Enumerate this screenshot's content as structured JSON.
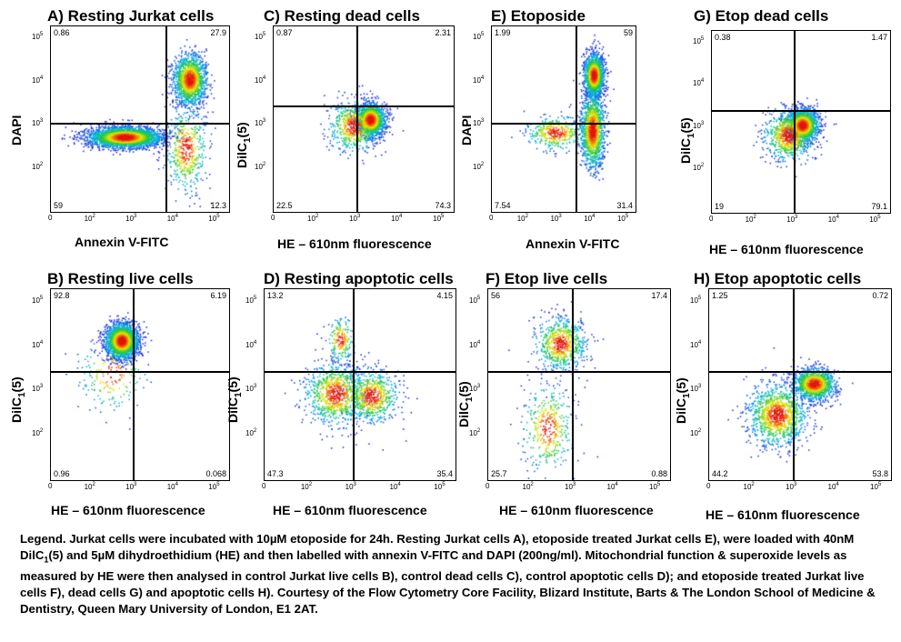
{
  "chart_data": [
    {
      "id": "A",
      "type": "scatter",
      "title": "A) Resting Jurkat cells",
      "xlabel": "Annexin V-FITC",
      "ylabel": "DAPI",
      "x_scale": "log",
      "y_scale": "log",
      "xlim": [
        10,
        200000
      ],
      "ylim": [
        10,
        200000
      ],
      "x_ticks": [
        "0",
        "10^2",
        "10^3",
        "10^4",
        "10^5"
      ],
      "y_ticks": [
        "10^2",
        "10^3",
        "10^4",
        "10^5"
      ],
      "gate": {
        "x": 6000,
        "y": 1100
      },
      "quadrants": {
        "top_left": "0.86",
        "top_right": "27.9",
        "bottom_left": "59",
        "bottom_right": "12.3"
      },
      "populations": [
        {
          "x": 600,
          "y": 550,
          "sx": 0.45,
          "sy": 0.12,
          "n": 3000
        },
        {
          "x": 22000,
          "y": 12000,
          "sx": 0.2,
          "sy": 0.3,
          "n": 1400
        },
        {
          "x": 18000,
          "y": 300,
          "sx": 0.25,
          "sy": 0.5,
          "n": 500
        }
      ]
    },
    {
      "id": "C",
      "type": "scatter",
      "title": "C) Resting dead cells",
      "xlabel": "HE – 610nm fluorescence",
      "ylabel": "DilC1(5)",
      "x_scale": "log",
      "y_scale": "log",
      "xlim": [
        10,
        200000
      ],
      "ylim": [
        10,
        200000
      ],
      "x_ticks": [
        "0",
        "10^2",
        "10^3",
        "10^4",
        "10^5"
      ],
      "y_ticks": [
        "10^2",
        "10^3",
        "10^4",
        "10^5"
      ],
      "gate": {
        "x": 1000,
        "y": 2800
      },
      "quadrants": {
        "top_left": "0.87",
        "top_right": "2.31",
        "bottom_left": "22.5",
        "bottom_right": "74.3"
      },
      "populations": [
        {
          "x": 2000,
          "y": 1400,
          "sx": 0.18,
          "sy": 0.2,
          "n": 1500
        },
        {
          "x": 800,
          "y": 1000,
          "sx": 0.3,
          "sy": 0.3,
          "n": 600
        }
      ]
    },
    {
      "id": "E",
      "type": "scatter",
      "title": "E) Etoposide",
      "xlabel": "Annexin V-FITC",
      "ylabel": "DAPI",
      "x_scale": "log",
      "y_scale": "log",
      "xlim": [
        10,
        200000
      ],
      "ylim": [
        10,
        200000
      ],
      "x_ticks": [
        "0",
        "10^2",
        "10^3",
        "10^4",
        "10^5"
      ],
      "y_ticks": [
        "10^2",
        "10^3",
        "10^4",
        "10^5"
      ],
      "gate": {
        "x": 3500,
        "y": 1100
      },
      "quadrants": {
        "top_left": "1.99",
        "top_right": "59",
        "bottom_left": "7.54",
        "bottom_right": "31.4"
      },
      "populations": [
        {
          "x": 11000,
          "y": 15000,
          "sx": 0.15,
          "sy": 0.25,
          "n": 1500
        },
        {
          "x": 10000,
          "y": 800,
          "sx": 0.18,
          "sy": 0.45,
          "n": 1400
        },
        {
          "x": 800,
          "y": 700,
          "sx": 0.45,
          "sy": 0.2,
          "n": 400
        }
      ]
    },
    {
      "id": "G",
      "type": "scatter",
      "title": "G) Etop dead cells",
      "xlabel": "HE – 610nm fluorescence",
      "ylabel": "DilC1(5)",
      "x_scale": "log",
      "y_scale": "log",
      "xlim": [
        10,
        200000
      ],
      "ylim": [
        10,
        200000
      ],
      "x_ticks": [
        "0",
        "10^2",
        "10^3",
        "10^4",
        "10^5"
      ],
      "y_ticks": [
        "10^2",
        "10^3",
        "10^4",
        "10^5"
      ],
      "gate": {
        "x": 1000,
        "y": 2600
      },
      "quadrants": {
        "top_left": "0.38",
        "top_right": "1.47",
        "bottom_left": "19",
        "bottom_right": "79.1"
      },
      "populations": [
        {
          "x": 1500,
          "y": 1200,
          "sx": 0.2,
          "sy": 0.2,
          "n": 1600
        },
        {
          "x": 700,
          "y": 700,
          "sx": 0.3,
          "sy": 0.3,
          "n": 800
        }
      ]
    },
    {
      "id": "B",
      "type": "scatter",
      "title": "B) Resting live cells",
      "xlabel": "HE – 610nm fluorescence",
      "ylabel": "DilC1(5)",
      "x_scale": "log",
      "y_scale": "log",
      "xlim": [
        10,
        200000
      ],
      "ylim": [
        10,
        200000
      ],
      "x_ticks": [
        "0",
        "10^2",
        "10^3",
        "10^4",
        "10^5"
      ],
      "y_ticks": [
        "10^2",
        "10^3",
        "10^4",
        "10^5"
      ],
      "gate": {
        "x": 1000,
        "y": 2800
      },
      "quadrants": {
        "top_left": "92.8",
        "top_right": "6.19",
        "bottom_left": "0.96",
        "bottom_right": "0.068"
      },
      "populations": [
        {
          "x": 500,
          "y": 14000,
          "sx": 0.2,
          "sy": 0.2,
          "n": 2200
        },
        {
          "x": 300,
          "y": 2500,
          "sx": 0.4,
          "sy": 0.4,
          "n": 200
        }
      ]
    },
    {
      "id": "D",
      "type": "scatter",
      "title": "D) Resting apoptotic cells",
      "xlabel": "HE – 610nm fluorescence",
      "ylabel": "DilC1(5)",
      "x_scale": "log",
      "y_scale": "log",
      "xlim": [
        10,
        200000
      ],
      "ylim": [
        10,
        200000
      ],
      "x_ticks": [
        "0",
        "10^2",
        "10^3",
        "10^4",
        "10^5"
      ],
      "y_ticks": [
        "10^2",
        "10^3",
        "10^4",
        "10^5"
      ],
      "gate": {
        "x": 1000,
        "y": 2800
      },
      "quadrants": {
        "top_left": "13.2",
        "top_right": "4.15",
        "bottom_left": "47.3",
        "bottom_right": "35.4"
      },
      "populations": [
        {
          "x": 400,
          "y": 900,
          "sx": 0.35,
          "sy": 0.35,
          "n": 900
        },
        {
          "x": 2500,
          "y": 800,
          "sx": 0.3,
          "sy": 0.3,
          "n": 700
        },
        {
          "x": 500,
          "y": 15000,
          "sx": 0.15,
          "sy": 0.25,
          "n": 200
        }
      ]
    },
    {
      "id": "F",
      "type": "scatter",
      "title": "F) Etop live cells",
      "xlabel": "HE – 610nm fluorescence",
      "ylabel": "DilC1(5)",
      "x_scale": "log",
      "y_scale": "log",
      "xlim": [
        10,
        200000
      ],
      "ylim": [
        10,
        200000
      ],
      "x_ticks": [
        "0",
        "10^2",
        "10^3",
        "10^4",
        "10^5"
      ],
      "y_ticks": [
        "10^2",
        "10^3",
        "10^4",
        "10^5"
      ],
      "gate": {
        "x": 1000,
        "y": 2800
      },
      "quadrants": {
        "top_left": "56",
        "top_right": "17.4",
        "bottom_left": "25.7",
        "bottom_right": "0.88"
      },
      "populations": [
        {
          "x": 500,
          "y": 12000,
          "sx": 0.3,
          "sy": 0.3,
          "n": 700
        },
        {
          "x": 250,
          "y": 150,
          "sx": 0.3,
          "sy": 0.5,
          "n": 400
        }
      ]
    },
    {
      "id": "H",
      "type": "scatter",
      "title": "H) Etop apoptotic cells",
      "xlabel": "HE – 610nm fluorescence",
      "ylabel": "DilC1(5)",
      "x_scale": "log",
      "y_scale": "log",
      "xlim": [
        10,
        200000
      ],
      "ylim": [
        10,
        200000
      ],
      "x_ticks": [
        "0",
        "10^2",
        "10^3",
        "10^4",
        "10^5"
      ],
      "y_ticks": [
        "10^2",
        "10^3",
        "10^4",
        "10^5"
      ],
      "gate": {
        "x": 1000,
        "y": 2800
      },
      "quadrants": {
        "top_left": "1.25",
        "top_right": "0.72",
        "bottom_left": "44.2",
        "bottom_right": "53.8"
      },
      "populations": [
        {
          "x": 3000,
          "y": 1500,
          "sx": 0.25,
          "sy": 0.18,
          "n": 1200
        },
        {
          "x": 400,
          "y": 300,
          "sx": 0.35,
          "sy": 0.35,
          "n": 1200
        }
      ]
    }
  ],
  "legend_text": {
    "p1": "Legend.  Jurkat cells were incubated with 10µM  etoposide for 24h. Resting Jurkat cells A), etoposide treated Jurkat cells E), were loaded with 40nM ",
    "p1_dil": "DilC",
    "p1_sub": "1",
    "p2": "(5) and 5µM dihydroethidium (HE) and then labelled with annexin V-FITC and DAPI (200ng/ml). Mitochondrial function & superoxide levels as measured by HE were then analysed in control Jurkat live cells B), control dead cells C), control apoptotic cells D); and etoposide treated Jurkat live cells F), dead cells G) and apoptotic cells H). Courtesy of the Flow Cytometry Core Facility, Blizard Institute, Barts & The London School of Medicine & Dentistry, Queen Mary University of London, E1 2AT."
  }
}
